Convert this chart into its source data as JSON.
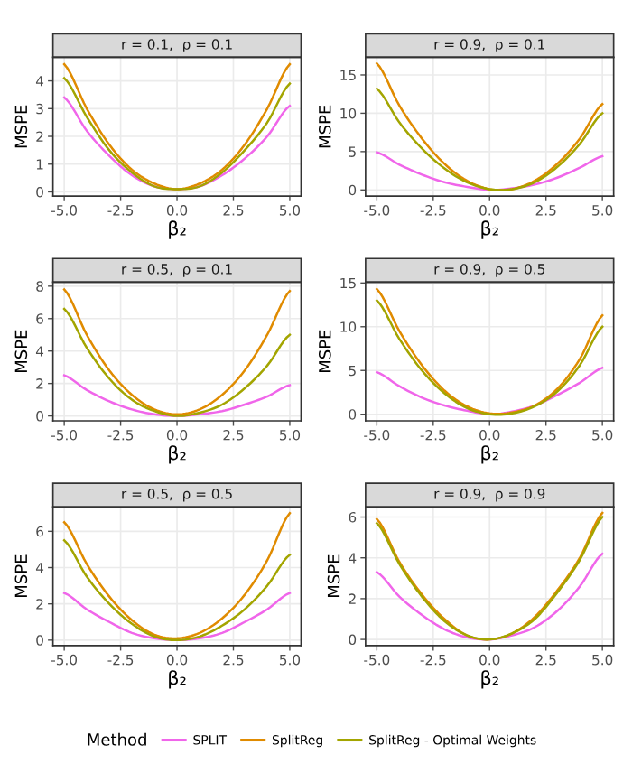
{
  "chart_data": [
    {
      "type": "line",
      "title": "r = 0.1,  ρ = 0.1",
      "xlabel": "β₂",
      "ylabel": "MSPE",
      "x": [
        -5,
        -4,
        -3,
        -2,
        -1,
        0,
        1,
        2,
        3,
        4,
        5
      ],
      "xlim": [
        -5.5,
        5.5
      ],
      "xticks": [
        {
          "value": -5,
          "label": "-5.0"
        },
        {
          "value": -2.5,
          "label": "-2.5"
        },
        {
          "value": 0,
          "label": "0.0"
        },
        {
          "value": 2.5,
          "label": "2.5"
        },
        {
          "value": 5,
          "label": "5.0"
        }
      ],
      "ylim": [
        -0.15,
        4.85
      ],
      "yticks": [
        0,
        1,
        2,
        3,
        4
      ],
      "grid": true,
      "legend": "bottom",
      "legend_title": "Method",
      "series": [
        {
          "name": "SPLIT",
          "color": "#f066ea",
          "values": [
            3.4,
            2.2,
            1.3,
            0.6,
            0.2,
            0.1,
            0.2,
            0.6,
            1.2,
            2.0,
            3.1
          ]
        },
        {
          "name": "SplitReg",
          "color": "#e08b00",
          "values": [
            4.6,
            3.0,
            1.7,
            0.8,
            0.3,
            0.1,
            0.3,
            0.8,
            1.7,
            3.0,
            4.6
          ]
        },
        {
          "name": "SplitReg - Optimal Weights",
          "color": "#a3a500",
          "values": [
            4.1,
            2.7,
            1.5,
            0.7,
            0.2,
            0.1,
            0.2,
            0.7,
            1.5,
            2.5,
            3.9
          ]
        }
      ]
    },
    {
      "type": "line",
      "title": "r = 0.9,  ρ = 0.1",
      "xlabel": "β₂",
      "ylabel": "MSPE",
      "x": [
        -5,
        -4,
        -3,
        -2,
        -1,
        0,
        1,
        2,
        3,
        4,
        5
      ],
      "xlim": [
        -5.5,
        5.5
      ],
      "xticks": [
        {
          "value": -5,
          "label": "-5.0"
        },
        {
          "value": -2.5,
          "label": "-2.5"
        },
        {
          "value": 0,
          "label": "0.0"
        },
        {
          "value": 2.5,
          "label": "2.5"
        },
        {
          "value": 5,
          "label": "5.0"
        }
      ],
      "ylim": [
        -0.8,
        17.3
      ],
      "yticks": [
        0,
        5,
        10,
        15
      ],
      "grid": true,
      "series": [
        {
          "color": "#f066ea",
          "values": [
            4.9,
            3.3,
            2.0,
            1.0,
            0.4,
            0.0,
            0.2,
            0.7,
            1.6,
            2.9,
            4.4
          ]
        },
        {
          "color": "#e08b00",
          "values": [
            16.5,
            11.0,
            6.7,
            3.4,
            1.2,
            0.1,
            0.1,
            1.2,
            3.4,
            6.7,
            11.2
          ]
        },
        {
          "color": "#a3a500",
          "values": [
            13.2,
            8.8,
            5.4,
            2.8,
            1.0,
            0.1,
            0.1,
            1.0,
            3.0,
            6.0,
            10.0
          ]
        }
      ]
    },
    {
      "type": "line",
      "title": "r = 0.5,  ρ = 0.1",
      "xlabel": "β₂",
      "ylabel": "MSPE",
      "x": [
        -5,
        -4,
        -3,
        -2,
        -1,
        0,
        1,
        2,
        3,
        4,
        5
      ],
      "xlim": [
        -5.5,
        5.5
      ],
      "xticks": [
        {
          "value": -5,
          "label": "-5.0"
        },
        {
          "value": -2.5,
          "label": "-2.5"
        },
        {
          "value": 0,
          "label": "0.0"
        },
        {
          "value": 2.5,
          "label": "2.5"
        },
        {
          "value": 5,
          "label": "5.0"
        }
      ],
      "ylim": [
        -0.3,
        8.25
      ],
      "yticks": [
        0,
        2,
        4,
        6,
        8
      ],
      "grid": true,
      "series": [
        {
          "color": "#f066ea",
          "values": [
            2.5,
            1.6,
            0.9,
            0.4,
            0.1,
            0.0,
            0.1,
            0.3,
            0.7,
            1.2,
            1.9
          ]
        },
        {
          "color": "#e08b00",
          "values": [
            7.8,
            5.0,
            2.8,
            1.3,
            0.4,
            0.1,
            0.4,
            1.3,
            2.8,
            5.0,
            7.7
          ]
        },
        {
          "color": "#a3a500",
          "values": [
            6.6,
            4.2,
            2.3,
            1.0,
            0.3,
            0.0,
            0.2,
            0.7,
            1.7,
            3.1,
            5.0
          ]
        }
      ]
    },
    {
      "type": "line",
      "title": "r = 0.9,  ρ = 0.5",
      "xlabel": "β₂",
      "ylabel": "MSPE",
      "x": [
        -5,
        -4,
        -3,
        -2,
        -1,
        0,
        1,
        2,
        3,
        4,
        5
      ],
      "xlim": [
        -5.5,
        5.5
      ],
      "xticks": [
        {
          "value": -5,
          "label": "-5.0"
        },
        {
          "value": -2.5,
          "label": "-2.5"
        },
        {
          "value": 0,
          "label": "0.0"
        },
        {
          "value": 2.5,
          "label": "2.5"
        },
        {
          "value": 5,
          "label": "5.0"
        }
      ],
      "ylim": [
        -0.75,
        15.1
      ],
      "yticks": [
        0,
        5,
        10,
        15
      ],
      "grid": true,
      "series": [
        {
          "color": "#f066ea",
          "values": [
            4.8,
            3.2,
            1.9,
            1.0,
            0.4,
            0.0,
            0.3,
            1.0,
            2.2,
            3.6,
            5.3
          ]
        },
        {
          "color": "#e08b00",
          "values": [
            14.3,
            9.5,
            5.6,
            2.7,
            0.9,
            0.1,
            0.2,
            1.0,
            2.9,
            6.3,
            11.3
          ]
        },
        {
          "color": "#a3a500",
          "values": [
            13.0,
            8.6,
            5.0,
            2.4,
            0.7,
            0.0,
            0.1,
            0.9,
            2.6,
            5.6,
            10.0
          ]
        }
      ]
    },
    {
      "type": "line",
      "title": "r = 0.5,  ρ = 0.5",
      "xlabel": "β₂",
      "ylabel": "MSPE",
      "x": [
        -5,
        -4,
        -3,
        -2,
        -1,
        0,
        1,
        2,
        3,
        4,
        5
      ],
      "xlim": [
        -5.5,
        5.5
      ],
      "xticks": [
        {
          "value": -5,
          "label": "-5.0"
        },
        {
          "value": -2.5,
          "label": "-2.5"
        },
        {
          "value": 0,
          "label": "0.0"
        },
        {
          "value": 2.5,
          "label": "2.5"
        },
        {
          "value": 5,
          "label": "5.0"
        }
      ],
      "ylim": [
        -0.3,
        7.35
      ],
      "yticks": [
        0,
        2,
        4,
        6
      ],
      "grid": true,
      "series": [
        {
          "color": "#f066ea",
          "values": [
            2.6,
            1.7,
            1.0,
            0.4,
            0.1,
            0.0,
            0.1,
            0.4,
            1.0,
            1.7,
            2.6
          ]
        },
        {
          "color": "#e08b00",
          "values": [
            6.5,
            4.2,
            2.4,
            1.1,
            0.3,
            0.1,
            0.4,
            1.2,
            2.5,
            4.4,
            7.0
          ]
        },
        {
          "color": "#a3a500",
          "values": [
            5.5,
            3.5,
            2.0,
            0.9,
            0.2,
            0.0,
            0.2,
            0.8,
            1.7,
            3.0,
            4.7
          ]
        }
      ]
    },
    {
      "type": "line",
      "title": "r = 0.9,  ρ = 0.9",
      "xlabel": "β₂",
      "ylabel": "MSPE",
      "x": [
        -5,
        -4,
        -3,
        -2,
        -1,
        0,
        1,
        2,
        3,
        4,
        5
      ],
      "xlim": [
        -5.5,
        5.5
      ],
      "xticks": [
        {
          "value": -5,
          "label": "-5.0"
        },
        {
          "value": -2.5,
          "label": "-2.5"
        },
        {
          "value": 0,
          "label": "0.0"
        },
        {
          "value": 2.5,
          "label": "2.5"
        },
        {
          "value": 5,
          "label": "5.0"
        }
      ],
      "ylim": [
        -0.3,
        6.5
      ],
      "yticks": [
        0,
        2,
        4,
        6
      ],
      "grid": true,
      "series": [
        {
          "color": "#f066ea",
          "values": [
            3.3,
            2.1,
            1.2,
            0.5,
            0.1,
            0.0,
            0.2,
            0.6,
            1.4,
            2.6,
            4.2
          ]
        },
        {
          "color": "#e08b00",
          "values": [
            5.9,
            3.8,
            2.2,
            1.0,
            0.2,
            0.0,
            0.3,
            1.1,
            2.4,
            4.0,
            6.2
          ]
        },
        {
          "color": "#a3a500",
          "values": [
            5.7,
            3.7,
            2.1,
            0.9,
            0.2,
            0.0,
            0.3,
            1.0,
            2.3,
            3.9,
            6.0
          ]
        }
      ]
    }
  ]
}
